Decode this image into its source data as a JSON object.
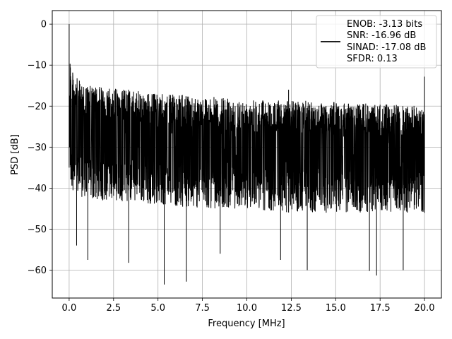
{
  "chart_data": {
    "type": "line",
    "title": "",
    "xlabel": "Frequency [MHz]",
    "ylabel": "PSD [dB]",
    "xlim": [
      -0.95,
      20.95
    ],
    "ylim": [
      -66.8,
      3.3
    ],
    "xticks": [
      0.0,
      2.5,
      5.0,
      7.5,
      10.0,
      12.5,
      15.0,
      17.5,
      20.0
    ],
    "xtick_labels": [
      "0.0",
      "2.5",
      "5.0",
      "7.5",
      "10.0",
      "12.5",
      "15.0",
      "17.5",
      "20.0"
    ],
    "yticks": [
      0,
      -10,
      -20,
      -30,
      -40,
      -50,
      -60
    ],
    "ytick_labels": [
      "0",
      "−10",
      "−20",
      "−30",
      "−40",
      "−50",
      "−60"
    ],
    "grid": true,
    "legend_position": "top-right",
    "series": [
      {
        "name": "ENOB: -3.13 bits\nSNR: -16.96 dB\nSINAD: -17.08 dB\nSFDR: 0.13",
        "color": "#000000",
        "x_range": [
          0.0,
          20.0
        ],
        "envelope": {
          "x": [
            0.0,
            0.1,
            0.5,
            1.0,
            2.5,
            5.0,
            7.5,
            10.0,
            12.5,
            15.0,
            17.5,
            20.0
          ],
          "upper": [
            0.0,
            -11.0,
            -13.5,
            -15.0,
            -15.5,
            -17.0,
            -17.5,
            -18.5,
            -18.5,
            -19.0,
            -19.5,
            -20.0
          ],
          "typical_low": [
            -35,
            -40,
            -42,
            -43,
            -43,
            -44,
            -45,
            -45,
            -46,
            -46,
            -46,
            -46
          ]
        },
        "spikes": [
          {
            "x": 0.0,
            "y": 0.0
          },
          {
            "x": 3.35,
            "y": -16.0
          },
          {
            "x": 12.35,
            "y": -16.0
          },
          {
            "x": 20.0,
            "y": -12.8
          }
        ],
        "dips": [
          {
            "x": 0.42,
            "y": -54.0
          },
          {
            "x": 1.05,
            "y": -57.5
          },
          {
            "x": 3.35,
            "y": -58.2
          },
          {
            "x": 5.35,
            "y": -63.5
          },
          {
            "x": 6.6,
            "y": -62.8
          },
          {
            "x": 8.5,
            "y": -56.0
          },
          {
            "x": 11.9,
            "y": -57.5
          },
          {
            "x": 13.4,
            "y": -60.0
          },
          {
            "x": 16.9,
            "y": -60.2
          },
          {
            "x": 17.3,
            "y": -61.3
          },
          {
            "x": 18.8,
            "y": -60.0
          }
        ]
      }
    ],
    "legend": {
      "lines": [
        "ENOB: -3.13 bits",
        "SNR: -16.96 dB",
        "SINAD: -17.08 dB",
        "SFDR: 0.13"
      ]
    }
  }
}
